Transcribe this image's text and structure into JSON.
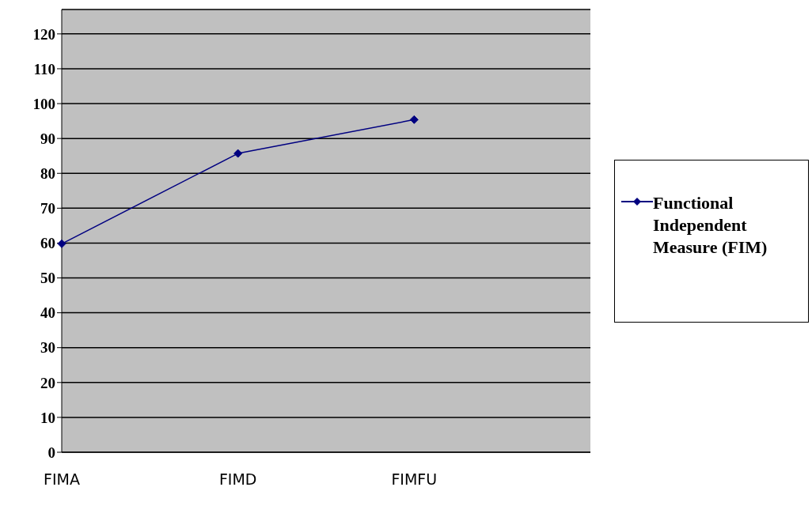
{
  "chart_data": {
    "type": "line",
    "categories": [
      "FIMA",
      "FIMD",
      "FIMFU",
      null
    ],
    "series": [
      {
        "name": "Functional Independent Measure (FIM)",
        "color": "#000080",
        "values": [
          59.8,
          85.7,
          95.4,
          null
        ]
      }
    ],
    "ylim": [
      0,
      127
    ],
    "yticks": [
      0,
      10,
      20,
      30,
      40,
      50,
      60,
      70,
      80,
      90,
      100,
      110,
      120
    ],
    "grid": "y",
    "legend": "right",
    "marker": "diamond",
    "line_style": "solid"
  }
}
